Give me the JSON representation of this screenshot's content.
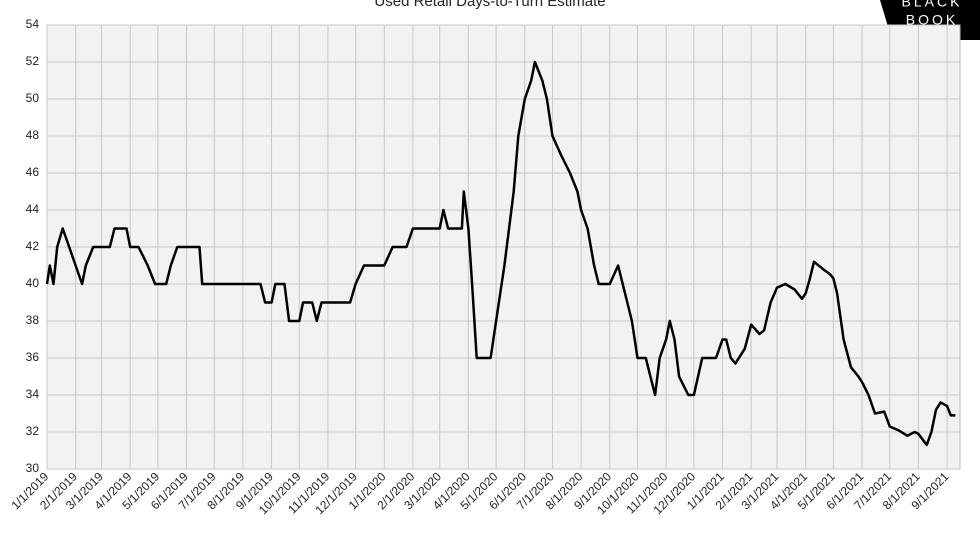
{
  "chart_data": {
    "type": "line",
    "title": "Used Retail Days-to-Turn Estimate",
    "logo": [
      "BLACK",
      "BOOK"
    ],
    "x": [
      "1/1/2019",
      "1/4/2019",
      "1/8/2019",
      "1/12/2019",
      "1/18/2019",
      "1/25/2019",
      "2/1/2019",
      "2/8/2019",
      "2/12/2019",
      "2/20/2019",
      "3/1/2019",
      "3/10/2019",
      "3/15/2019",
      "3/28/2019",
      "4/1/2019",
      "4/10/2019",
      "4/20/2019",
      "4/28/2019",
      "5/10/2019",
      "5/15/2019",
      "5/22/2019",
      "6/1/2019",
      "6/15/2019",
      "6/18/2019",
      "7/1/2019",
      "8/1/2019",
      "8/20/2019",
      "8/25/2019",
      "9/1/2019",
      "9/5/2019",
      "9/15/2019",
      "9/20/2019",
      "10/1/2019",
      "10/5/2019",
      "10/15/2019",
      "10/20/2019",
      "10/25/2019",
      "11/15/2019",
      "11/25/2019",
      "12/1/2019",
      "12/10/2019",
      "12/25/2019",
      "1/1/2020",
      "1/10/2020",
      "1/25/2020",
      "2/1/2020",
      "2/25/2020",
      "3/1/2020",
      "3/5/2020",
      "3/10/2020",
      "3/25/2020",
      "3/27/2020",
      "4/1/2020",
      "4/5/2020",
      "4/10/2020",
      "4/25/2020",
      "5/1/2020",
      "5/10/2020",
      "5/20/2020",
      "5/25/2020",
      "6/1/2020",
      "6/8/2020",
      "6/12/2020",
      "6/20/2020",
      "6/25/2020",
      "7/1/2020",
      "7/10/2020",
      "7/20/2020",
      "7/28/2020",
      "8/1/2020",
      "8/8/2020",
      "8/15/2020",
      "8/20/2020",
      "9/1/2020",
      "9/10/2020",
      "9/15/2020",
      "9/25/2020",
      "10/1/2020",
      "10/10/2020",
      "10/15/2020",
      "10/20/2020",
      "10/25/2020",
      "11/1/2020",
      "11/5/2020",
      "11/10/2020",
      "11/15/2020",
      "11/25/2020",
      "12/1/2020",
      "12/10/2020",
      "12/25/2020",
      "1/1/2021",
      "1/5/2021",
      "1/10/2021",
      "1/15/2021",
      "1/25/2021",
      "2/1/2021",
      "2/10/2021",
      "2/15/2021",
      "2/22/2021",
      "3/1/2021",
      "3/10/2021",
      "3/20/2021",
      "3/28/2021",
      "4/1/2021",
      "4/5/2021",
      "4/10/2021",
      "4/20/2021",
      "4/28/2021",
      "5/1/2021",
      "5/5/2021",
      "5/12/2021",
      "5/20/2021",
      "5/28/2021",
      "6/1/2021",
      "6/8/2021",
      "6/15/2021",
      "6/25/2021",
      "7/1/2021",
      "7/10/2021",
      "7/20/2021",
      "7/28/2021",
      "8/1/2021",
      "8/10/2021",
      "8/15/2021",
      "8/20/2021",
      "8/25/2021",
      "9/1/2021",
      "9/5/2021",
      "9/10/2021"
    ],
    "series": [
      {
        "color": "#000000",
        "values": [
          40,
          41,
          40,
          42,
          43,
          42,
          41,
          40,
          41,
          42,
          42,
          42,
          43,
          43,
          42,
          42,
          41,
          40,
          40,
          41,
          42,
          42,
          42,
          40,
          40,
          40,
          40,
          39,
          39,
          40,
          40,
          38,
          38,
          39,
          39,
          38,
          39,
          39,
          39,
          40,
          41,
          41,
          41,
          42,
          42,
          43,
          43,
          43,
          44,
          43,
          43,
          45,
          43,
          40,
          36,
          36,
          38,
          41,
          45,
          48,
          50,
          51,
          52,
          51,
          50,
          48,
          47,
          46,
          45,
          44,
          43,
          41,
          40,
          40,
          41,
          40,
          38,
          36,
          36,
          35,
          34,
          36,
          37,
          38,
          37,
          35,
          34,
          34,
          36,
          36,
          37,
          37,
          36,
          35.7,
          36.5,
          37.8,
          37.3,
          37.5,
          39,
          39.8,
          40,
          39.7,
          39.2,
          39.5,
          40.2,
          41.2,
          40.8,
          40.5,
          40.3,
          39.5,
          37,
          35.5,
          35,
          34.7,
          34,
          33,
          33.1,
          32.3,
          32.1,
          31.8,
          32,
          31.9,
          31.3,
          32,
          33.2,
          33.6,
          33.4,
          32.9,
          32.9
        ]
      }
    ],
    "xlim": [
      "1/1/2019",
      "9/15/2021"
    ],
    "xticks": [
      "1/1/2019",
      "2/1/2019",
      "3/1/2019",
      "4/1/2019",
      "5/1/2019",
      "6/1/2019",
      "7/1/2019",
      "8/1/2019",
      "9/1/2019",
      "10/1/2019",
      "11/1/2019",
      "12/1/2019",
      "1/1/2020",
      "2/1/2020",
      "3/1/2020",
      "4/1/2020",
      "5/1/2020",
      "6/1/2020",
      "7/1/2020",
      "8/1/2020",
      "9/1/2020",
      "10/1/2020",
      "11/1/2020",
      "12/1/2020",
      "1/1/2021",
      "2/1/2021",
      "3/1/2021",
      "4/1/2021",
      "5/1/2021",
      "6/1/2021",
      "7/1/2021",
      "8/1/2021",
      "9/1/2021"
    ],
    "ylim": [
      30,
      54
    ],
    "yticks": [
      30,
      32,
      34,
      36,
      38,
      40,
      42,
      44,
      46,
      48,
      50,
      52,
      54
    ],
    "grid": true
  }
}
